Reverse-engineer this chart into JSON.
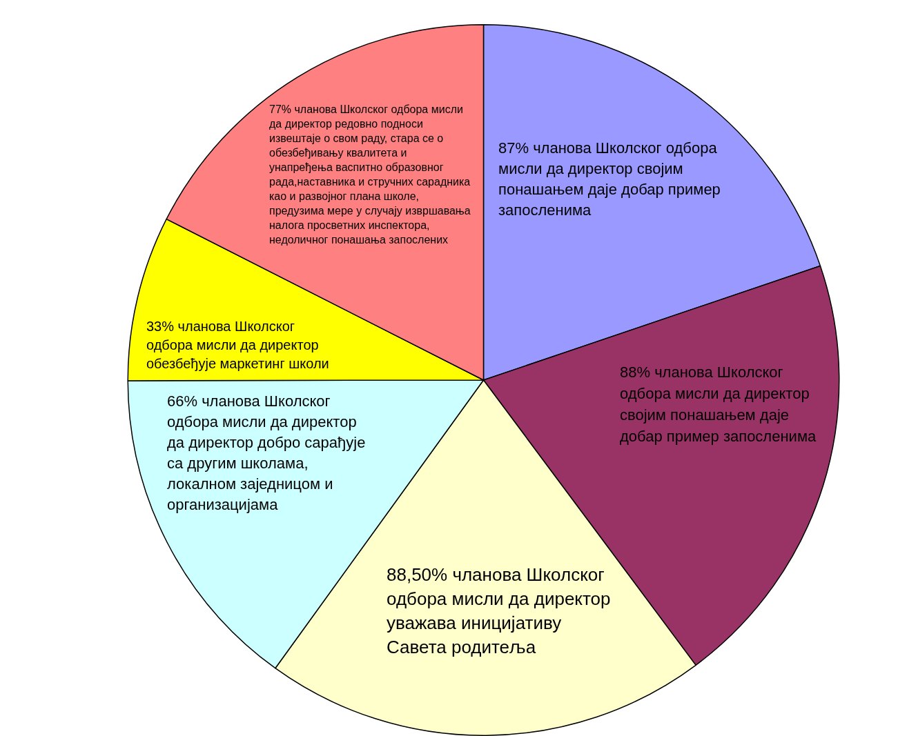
{
  "chart_data": {
    "type": "pie",
    "categories": [
      "87% чланова Школског одбора мисли да директор својим понашањем даје добар пример запосленима",
      "88% чланова Школског одбора мисли да директор својим понашањем даје добар пример запосленима",
      "88,50% чланова Школског одбора мисли да директор уважава иницијативу Савета родитеља",
      "66% чланова Школског одбора мисли да директор да директор добро сарађује са другим школама, локалном заједницом и организацијама",
      "33% чланова Школског одбора мисли да директор обезбеђује маркетинг школи",
      "77% чланова Школског одбора мисли да директор редовно подноси извештаје о свом раду, стара се о обезбеђивању квалитета и унапређења васпитно образовног рада,наставника и стручних сарадника као и развојног плана школе, предузима мере у случају извршавања налога просветних инспектора, недоличног понашања запослених"
    ],
    "values": [
      87,
      88,
      88.5,
      66,
      33,
      77
    ],
    "colors": [
      "#9999ff",
      "#993366",
      "#ffffcc",
      "#ccffff",
      "#ffff00",
      "#ff8080"
    ],
    "legend": false
  }
}
